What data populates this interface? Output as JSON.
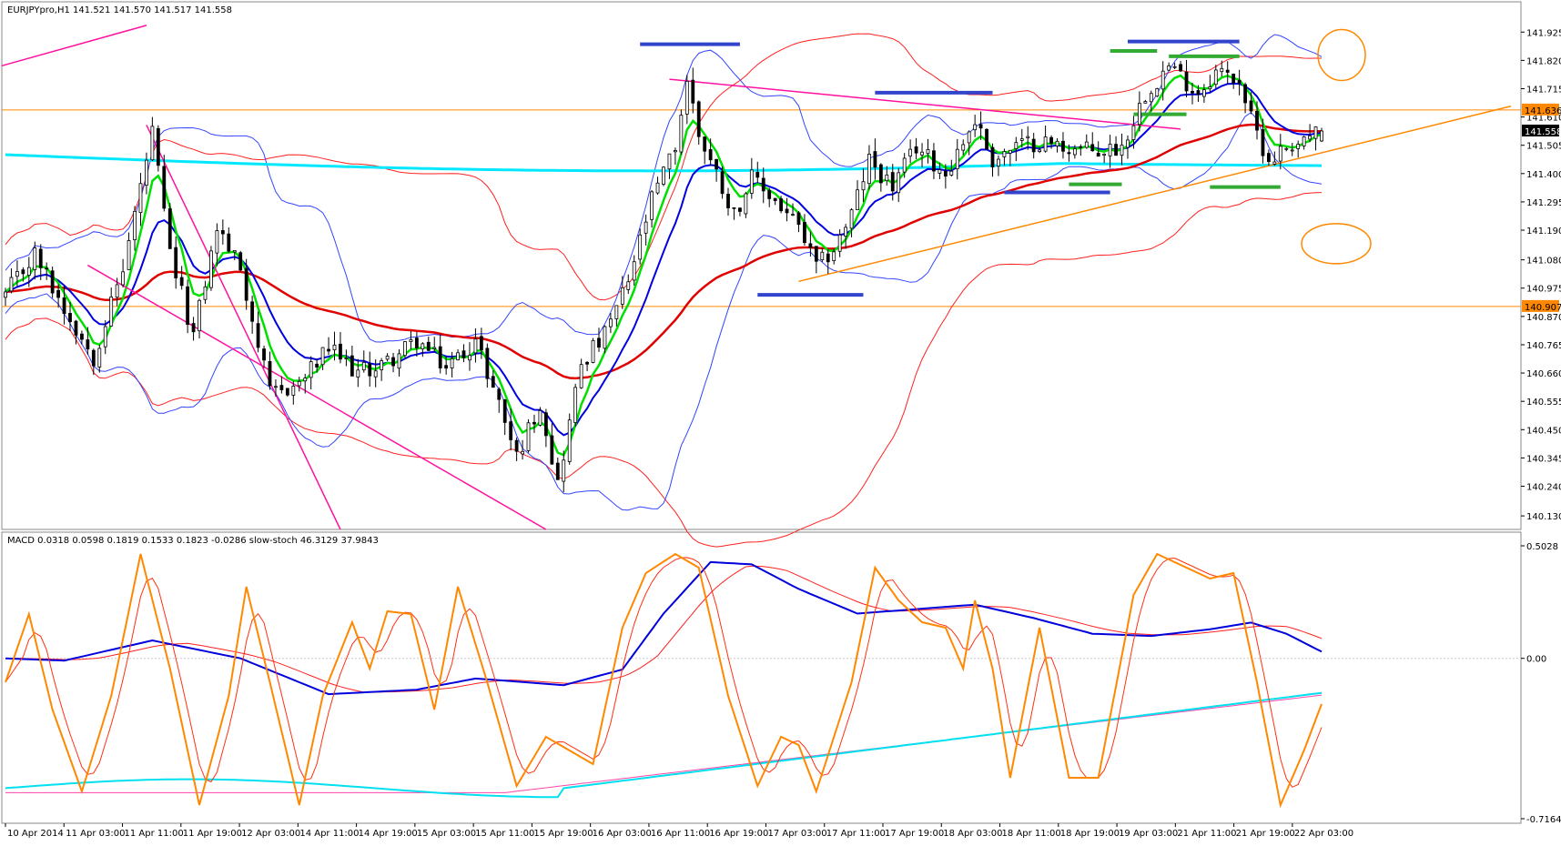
{
  "main_panel": {
    "header": "EURJPYpro,H1  141.521 141.570 141.517 141.558",
    "price_ticks": [
      "141.925",
      "141.820",
      "141.715",
      "141.610",
      "141.505",
      "141.400",
      "141.295",
      "141.190",
      "141.080",
      "140.975",
      "140.870",
      "140.765",
      "140.660",
      "140.555",
      "140.450",
      "140.345",
      "140.240",
      "140.130"
    ],
    "price_levels": [
      141.925,
      141.82,
      141.715,
      141.61,
      141.505,
      141.4,
      141.295,
      141.19,
      141.08,
      140.975,
      140.87,
      140.765,
      140.66,
      140.555,
      140.45,
      140.345,
      140.24,
      140.13
    ],
    "labels": {
      "upper_level": "141.636",
      "current_price": "141.558",
      "lower_level": "140.907"
    },
    "colors": {
      "up_candle": "#ffffff",
      "down_candle": "#000000",
      "ema_fast": "#00e000",
      "ema_mid": "#0000e0",
      "ema_slow": "#e00000",
      "ema_long": "#00e8ff",
      "bollinger": "#3344ff",
      "envelope": "#ff2020",
      "channel": "#ff10a0",
      "trendline": "#ff8800",
      "level_line": "#ff8800"
    }
  },
  "macd_panel": {
    "header": "MACD 0.0318 0.0598 0.1819 0.1533 0.1823 -0.0286  slow-stoch 46.3129 37.9843",
    "ticks": [
      "0.5028",
      "0.00",
      "-0.7164"
    ]
  },
  "time_axis": [
    "10 Apr 2014",
    "11 Apr 03:00",
    "11 Apr 11:00",
    "11 Apr 19:00",
    "12 Apr 03:00",
    "14 Apr 11:00",
    "14 Apr 19:00",
    "15 Apr 03:00",
    "15 Apr 11:00",
    "15 Apr 19:00",
    "16 Apr 03:00",
    "16 Apr 11:00",
    "16 Apr 19:00",
    "17 Apr 03:00",
    "17 Apr 11:00",
    "17 Apr 19:00",
    "18 Apr 03:00",
    "18 Apr 11:00",
    "18 Apr 19:00",
    "19 Apr 03:00",
    "21 Apr 11:00",
    "21 Apr 19:00",
    "22 Apr 03:00"
  ],
  "chart_data": {
    "type": "candlestick",
    "symbol": "EURJPYpro",
    "timeframe": "H1",
    "ohlc_last": {
      "open": 141.521,
      "high": 141.57,
      "low": 141.517,
      "close": 141.558
    },
    "ylim": [
      140.1,
      141.99
    ],
    "horizontal_levels": [
      141.636,
      140.907
    ],
    "waypoints": [
      {
        "h": 0,
        "p": 140.95
      },
      {
        "h": 5,
        "p": 141.1
      },
      {
        "h": 10,
        "p": 140.9
      },
      {
        "h": 15,
        "p": 140.72
      },
      {
        "h": 20,
        "p": 141.05
      },
      {
        "h": 25,
        "p": 141.55
      },
      {
        "h": 28,
        "p": 141.1
      },
      {
        "h": 32,
        "p": 140.8
      },
      {
        "h": 36,
        "p": 141.2
      },
      {
        "h": 40,
        "p": 141.05
      },
      {
        "h": 45,
        "p": 140.58
      },
      {
        "h": 50,
        "p": 140.62
      },
      {
        "h": 55,
        "p": 140.75
      },
      {
        "h": 60,
        "p": 140.66
      },
      {
        "h": 65,
        "p": 140.7
      },
      {
        "h": 70,
        "p": 140.78
      },
      {
        "h": 75,
        "p": 140.68
      },
      {
        "h": 80,
        "p": 140.78
      },
      {
        "h": 84,
        "p": 140.55
      },
      {
        "h": 87,
        "p": 140.35
      },
      {
        "h": 91,
        "p": 140.55
      },
      {
        "h": 94,
        "p": 140.25
      },
      {
        "h": 98,
        "p": 140.7
      },
      {
        "h": 102,
        "p": 140.8
      },
      {
        "h": 106,
        "p": 141.0
      },
      {
        "h": 110,
        "p": 141.3
      },
      {
        "h": 114,
        "p": 141.5
      },
      {
        "h": 116,
        "p": 141.75
      },
      {
        "h": 118,
        "p": 141.55
      },
      {
        "h": 121,
        "p": 141.4
      },
      {
        "h": 124,
        "p": 141.25
      },
      {
        "h": 127,
        "p": 141.38
      },
      {
        "h": 131,
        "p": 141.3
      },
      {
        "h": 135,
        "p": 141.2
      },
      {
        "h": 138,
        "p": 141.05
      },
      {
        "h": 141,
        "p": 141.12
      },
      {
        "h": 144,
        "p": 141.25
      },
      {
        "h": 147,
        "p": 141.45
      },
      {
        "h": 151,
        "p": 141.35
      },
      {
        "h": 155,
        "p": 141.5
      },
      {
        "h": 160,
        "p": 141.4
      },
      {
        "h": 165,
        "p": 141.6
      },
      {
        "h": 168,
        "p": 141.45
      },
      {
        "h": 172,
        "p": 141.5
      },
      {
        "h": 176,
        "p": 141.52
      },
      {
        "h": 180,
        "p": 141.5
      },
      {
        "h": 186,
        "p": 141.48
      },
      {
        "h": 190,
        "p": 141.5
      },
      {
        "h": 194,
        "p": 141.7
      },
      {
        "h": 198,
        "p": 141.8
      },
      {
        "h": 203,
        "p": 141.7
      },
      {
        "h": 206,
        "p": 141.78
      },
      {
        "h": 210,
        "p": 141.75
      },
      {
        "h": 212,
        "p": 141.6
      },
      {
        "h": 215,
        "p": 141.45
      },
      {
        "h": 218,
        "p": 141.5
      },
      {
        "h": 221,
        "p": 141.53
      },
      {
        "h": 224,
        "p": 141.558
      }
    ],
    "macd_ylim": [
      -0.7164,
      0.5028
    ],
    "macd_waypoints": [
      {
        "h": 0,
        "p": 0.0
      },
      {
        "h": 10,
        "p": -0.01
      },
      {
        "h": 25,
        "p": 0.08
      },
      {
        "h": 40,
        "p": 0.0
      },
      {
        "h": 55,
        "p": -0.16
      },
      {
        "h": 70,
        "p": -0.14
      },
      {
        "h": 80,
        "p": -0.09
      },
      {
        "h": 95,
        "p": -0.12
      },
      {
        "h": 105,
        "p": -0.05
      },
      {
        "h": 112,
        "p": 0.2
      },
      {
        "h": 120,
        "p": 0.43
      },
      {
        "h": 127,
        "p": 0.42
      },
      {
        "h": 135,
        "p": 0.31
      },
      {
        "h": 145,
        "p": 0.2
      },
      {
        "h": 155,
        "p": 0.22
      },
      {
        "h": 165,
        "p": 0.24
      },
      {
        "h": 175,
        "p": 0.18
      },
      {
        "h": 185,
        "p": 0.11
      },
      {
        "h": 195,
        "p": 0.1
      },
      {
        "h": 205,
        "p": 0.13
      },
      {
        "h": 212,
        "p": 0.16
      },
      {
        "h": 218,
        "p": 0.11
      },
      {
        "h": 224,
        "p": 0.03
      }
    ],
    "stoch_waypoints": [
      {
        "h": 0,
        "p": 50
      },
      {
        "h": 4,
        "p": 75
      },
      {
        "h": 8,
        "p": 40
      },
      {
        "h": 13,
        "p": 10
      },
      {
        "h": 18,
        "p": 45
      },
      {
        "h": 23,
        "p": 97
      },
      {
        "h": 28,
        "p": 55
      },
      {
        "h": 33,
        "p": 5
      },
      {
        "h": 38,
        "p": 45
      },
      {
        "h": 41,
        "p": 85
      },
      {
        "h": 45,
        "p": 50
      },
      {
        "h": 50,
        "p": 5
      },
      {
        "h": 54,
        "p": 45
      },
      {
        "h": 59,
        "p": 72
      },
      {
        "h": 62,
        "p": 55
      },
      {
        "h": 65,
        "p": 76
      },
      {
        "h": 69,
        "p": 75
      },
      {
        "h": 73,
        "p": 40
      },
      {
        "h": 77,
        "p": 85
      },
      {
        "h": 82,
        "p": 50
      },
      {
        "h": 87,
        "p": 12
      },
      {
        "h": 92,
        "p": 30
      },
      {
        "h": 96,
        "p": 25
      },
      {
        "h": 100,
        "p": 20
      },
      {
        "h": 105,
        "p": 70
      },
      {
        "h": 109,
        "p": 90
      },
      {
        "h": 114,
        "p": 97
      },
      {
        "h": 118,
        "p": 92
      },
      {
        "h": 123,
        "p": 45
      },
      {
        "h": 128,
        "p": 12
      },
      {
        "h": 132,
        "p": 30
      },
      {
        "h": 135,
        "p": 27
      },
      {
        "h": 138,
        "p": 10
      },
      {
        "h": 144,
        "p": 50
      },
      {
        "h": 148,
        "p": 92
      },
      {
        "h": 152,
        "p": 80
      },
      {
        "h": 156,
        "p": 72
      },
      {
        "h": 160,
        "p": 70
      },
      {
        "h": 163,
        "p": 55
      },
      {
        "h": 165,
        "p": 80
      },
      {
        "h": 168,
        "p": 55
      },
      {
        "h": 171,
        "p": 15
      },
      {
        "h": 176,
        "p": 70
      },
      {
        "h": 181,
        "p": 15
      },
      {
        "h": 186,
        "p": 15
      },
      {
        "h": 192,
        "p": 82
      },
      {
        "h": 196,
        "p": 97
      },
      {
        "h": 201,
        "p": 92
      },
      {
        "h": 205,
        "p": 88
      },
      {
        "h": 209,
        "p": 90
      },
      {
        "h": 213,
        "p": 50
      },
      {
        "h": 217,
        "p": 5
      },
      {
        "h": 221,
        "p": 25
      },
      {
        "h": 224,
        "p": 42
      }
    ]
  }
}
